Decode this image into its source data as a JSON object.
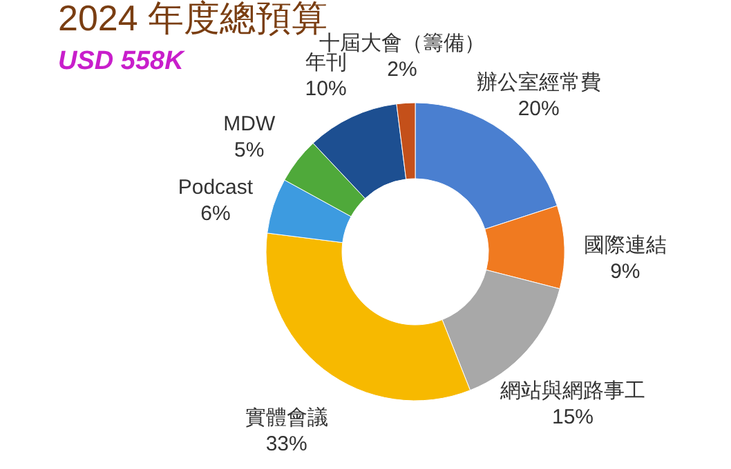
{
  "chart_data": {
    "type": "donut",
    "title": "2024 年度總預算",
    "subtitle": "USD 558K",
    "categories": [
      "辦公室經常費",
      "國際連結",
      "網站與網路事工",
      "實體會議",
      "Podcast",
      "MDW",
      "年刊",
      "十屆大會（籌備）"
    ],
    "values": [
      20,
      9,
      15,
      33,
      6,
      5,
      10,
      2
    ],
    "value_labels": [
      "20%",
      "9%",
      "15%",
      "33%",
      "6%",
      "5%",
      "10%",
      "2%"
    ],
    "colors": [
      "#4a7fd0",
      "#f07a20",
      "#a8a8a8",
      "#f7b900",
      "#3d9be0",
      "#4fa93a",
      "#1d4f91",
      "#c4501a"
    ],
    "legend": false
  }
}
